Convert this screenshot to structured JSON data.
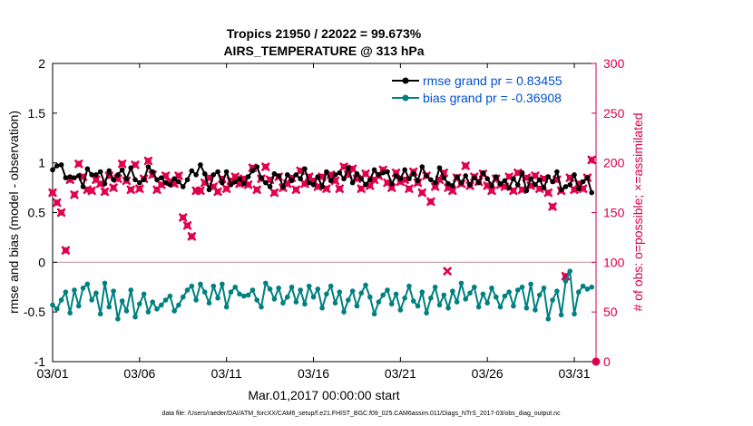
{
  "chart_data": {
    "type": "line",
    "title": "Tropics 21950 / 22022 = 99.673%",
    "subtitle": "AIRS_TEMPERATURE @ 313 hPa",
    "xlabel": "Mar.01,2017 00:00:00 start",
    "ylabel": "rmse and bias (model - observation)",
    "ylabel_right": "# of obs: o=possible; ×=assimilated",
    "footnote": "data file: /Users/raeder/DAI/ATM_forcXX/CAM6_setup/f.e21.FHIST_BGC.f09_025.CAM6assim.011/Diags_NTrS_2017-03/obs_diag_output.nc",
    "xlim": [
      0,
      31.25
    ],
    "ylim": [
      -1,
      2
    ],
    "ylim_right": [
      0,
      300
    ],
    "x_ticks": [
      0,
      5,
      10,
      15,
      20,
      25,
      30
    ],
    "x_tick_labels": [
      "03/01",
      "03/06",
      "03/11",
      "03/16",
      "03/21",
      "03/26",
      "03/31"
    ],
    "y_ticks": [
      -1,
      -0.5,
      0,
      0.5,
      1,
      1.5,
      2
    ],
    "y_tick_labels": [
      "-1",
      "-0.5",
      "0",
      "0.5",
      "1",
      "1.5",
      "2"
    ],
    "y_right_ticks": [
      0,
      50,
      100,
      150,
      200,
      250,
      300
    ],
    "y_right_tick_labels": [
      "0",
      "50",
      "100",
      "150",
      "200",
      "250",
      "300"
    ],
    "x": [
      0.0,
      0.25,
      0.5,
      0.75,
      1.0,
      1.25,
      1.5,
      1.75,
      2.0,
      2.25,
      2.5,
      2.75,
      3.0,
      3.25,
      3.5,
      3.75,
      4.0,
      4.25,
      4.5,
      4.75,
      5.0,
      5.25,
      5.5,
      5.75,
      6.0,
      6.25,
      6.5,
      6.75,
      7.0,
      7.25,
      7.5,
      7.75,
      8.0,
      8.25,
      8.5,
      8.75,
      9.0,
      9.25,
      9.5,
      9.75,
      10.0,
      10.25,
      10.5,
      10.75,
      11.0,
      11.25,
      11.5,
      11.75,
      12.0,
      12.25,
      12.5,
      12.75,
      13.0,
      13.25,
      13.5,
      13.75,
      14.0,
      14.25,
      14.5,
      14.75,
      15.0,
      15.25,
      15.5,
      15.75,
      16.0,
      16.25,
      16.5,
      16.75,
      17.0,
      17.25,
      17.5,
      17.75,
      18.0,
      18.25,
      18.5,
      18.75,
      19.0,
      19.25,
      19.5,
      19.75,
      20.0,
      20.25,
      20.5,
      20.75,
      21.0,
      21.25,
      21.5,
      21.75,
      22.0,
      22.25,
      22.5,
      22.75,
      23.0,
      23.25,
      23.5,
      23.75,
      24.0,
      24.25,
      24.5,
      24.75,
      25.0,
      25.25,
      25.5,
      25.75,
      26.0,
      26.25,
      26.5,
      26.75,
      27.0,
      27.25,
      27.5,
      27.75,
      28.0,
      28.25,
      28.5,
      28.75,
      29.0,
      29.25,
      29.5,
      29.75,
      30.0,
      30.25,
      30.5,
      30.75,
      31.0
    ],
    "series": [
      {
        "name": "rmse grand pr = 0.83455",
        "color": "#000000",
        "axis": "left",
        "marker": "circle",
        "values": [
          0.93,
          0.97,
          0.98,
          0.85,
          0.86,
          0.85,
          0.87,
          0.76,
          0.94,
          0.88,
          0.88,
          0.91,
          0.79,
          0.92,
          0.83,
          0.88,
          0.93,
          0.84,
          0.95,
          0.83,
          0.8,
          0.83,
          0.96,
          0.91,
          0.83,
          0.85,
          0.8,
          0.78,
          0.84,
          0.81,
          0.76,
          0.83,
          0.92,
          0.88,
          0.98,
          0.89,
          0.73,
          0.88,
          0.91,
          0.8,
          0.91,
          0.78,
          0.81,
          0.84,
          0.79,
          0.86,
          0.92,
          0.96,
          0.85,
          0.8,
          0.76,
          0.89,
          0.87,
          0.76,
          0.88,
          0.82,
          0.88,
          0.84,
          0.94,
          0.8,
          0.78,
          0.86,
          0.76,
          0.91,
          0.82,
          0.88,
          0.9,
          0.84,
          0.95,
          0.8,
          0.89,
          0.84,
          0.78,
          0.83,
          0.93,
          0.88,
          0.9,
          0.91,
          0.79,
          0.87,
          0.84,
          0.93,
          0.84,
          0.89,
          0.82,
          0.96,
          0.87,
          0.83,
          0.8,
          0.95,
          0.85,
          0.79,
          0.77,
          0.86,
          0.8,
          0.87,
          0.78,
          0.85,
          0.8,
          0.9,
          0.84,
          0.77,
          0.86,
          0.79,
          0.82,
          0.75,
          0.84,
          0.78,
          0.9,
          0.72,
          0.84,
          0.78,
          0.83,
          0.75,
          0.86,
          0.81,
          0.91,
          0.73,
          0.76,
          0.78,
          0.88,
          0.74,
          0.81,
          0.85,
          0.7
        ]
      },
      {
        "name": "bias grand pr = -0.36908",
        "color": "#008080",
        "axis": "left",
        "marker": "circle",
        "values": [
          -0.43,
          -0.47,
          -0.38,
          -0.3,
          -0.51,
          -0.28,
          -0.44,
          -0.26,
          -0.22,
          -0.38,
          -0.31,
          -0.52,
          -0.21,
          -0.45,
          -0.29,
          -0.57,
          -0.39,
          -0.49,
          -0.28,
          -0.55,
          -0.42,
          -0.32,
          -0.5,
          -0.4,
          -0.47,
          -0.43,
          -0.38,
          -0.34,
          -0.49,
          -0.43,
          -0.35,
          -0.28,
          -0.24,
          -0.38,
          -0.22,
          -0.3,
          -0.41,
          -0.24,
          -0.36,
          -0.22,
          -0.45,
          -0.3,
          -0.25,
          -0.32,
          -0.34,
          -0.33,
          -0.28,
          -0.38,
          -0.45,
          -0.21,
          -0.27,
          -0.37,
          -0.26,
          -0.41,
          -0.35,
          -0.25,
          -0.4,
          -0.28,
          -0.42,
          -0.24,
          -0.35,
          -0.27,
          -0.46,
          -0.32,
          -0.24,
          -0.41,
          -0.3,
          -0.5,
          -0.38,
          -0.29,
          -0.44,
          -0.31,
          -0.23,
          -0.35,
          -0.52,
          -0.4,
          -0.33,
          -0.28,
          -0.42,
          -0.32,
          -0.48,
          -0.36,
          -0.24,
          -0.39,
          -0.44,
          -0.3,
          -0.51,
          -0.36,
          -0.25,
          -0.43,
          -0.33,
          -0.46,
          -0.29,
          -0.4,
          -0.21,
          -0.37,
          -0.31,
          -0.25,
          -0.45,
          -0.32,
          -0.41,
          -0.26,
          -0.35,
          -0.45,
          -0.34,
          -0.3,
          -0.44,
          -0.28,
          -0.25,
          -0.46,
          -0.22,
          -0.48,
          -0.33,
          -0.26,
          -0.57,
          -0.38,
          -0.29,
          -0.53,
          -0.19,
          -0.09,
          -0.52,
          -0.3,
          -0.24,
          -0.27,
          -0.25
        ]
      },
      {
        "name": "# of obs assimilated",
        "color": "#e0004d",
        "axis": "right",
        "marker": "x",
        "values": [
          170,
          160,
          150,
          112,
          183,
          168,
          199,
          186,
          173,
          172,
          183,
          179,
          171,
          187,
          175,
          184,
          199,
          182,
          173,
          198,
          174,
          184,
          202,
          188,
          173,
          178,
          187,
          181,
          179,
          187,
          145,
          137,
          126,
          172,
          172,
          180,
          185,
          176,
          171,
          184,
          174,
          182,
          186,
          179,
          184,
          178,
          195,
          173,
          184,
          196,
          183,
          170,
          186,
          175,
          179,
          185,
          173,
          192,
          179,
          186,
          182,
          176,
          186,
          174,
          188,
          182,
          174,
          196,
          188,
          194,
          184,
          174,
          189,
          177,
          183,
          187,
          193,
          180,
          175,
          190,
          181,
          183,
          174,
          191,
          180,
          170,
          187,
          161,
          176,
          183,
          190,
          175,
          172,
          185,
          179,
          197,
          177,
          186,
          181,
          189,
          177,
          172,
          184,
          178,
          176,
          186,
          172,
          190,
          173,
          185,
          177,
          187,
          174,
          184,
          170,
          156,
          183,
          172,
          86,
          185,
          173,
          179,
          174,
          185,
          203
        ]
      },
      {
        "name": "# of obs possible",
        "color": "#e0004d",
        "axis": "right",
        "marker": "o",
        "values": [
          170,
          160,
          150,
          112,
          183,
          168,
          199,
          186,
          173,
          172,
          183,
          179,
          171,
          187,
          175,
          184,
          199,
          182,
          173,
          198,
          174,
          184,
          202,
          188,
          173,
          178,
          187,
          181,
          179,
          187,
          145,
          137,
          126,
          172,
          172,
          180,
          185,
          176,
          171,
          184,
          174,
          182,
          186,
          179,
          184,
          178,
          195,
          173,
          184,
          196,
          183,
          170,
          186,
          175,
          179,
          185,
          173,
          192,
          179,
          186,
          182,
          176,
          186,
          174,
          188,
          182,
          174,
          196,
          188,
          194,
          184,
          174,
          189,
          177,
          183,
          187,
          193,
          180,
          175,
          190,
          181,
          183,
          174,
          191,
          180,
          170,
          187,
          161,
          176,
          183,
          190,
          175,
          172,
          185,
          179,
          197,
          177,
          186,
          181,
          189,
          177,
          172,
          184,
          178,
          176,
          186,
          172,
          190,
          173,
          185,
          177,
          187,
          174,
          184,
          170,
          156,
          183,
          172,
          86,
          185,
          173,
          179,
          174,
          185,
          203
        ]
      }
    ],
    "extra_marks": [
      {
        "name": "late obs marker",
        "x": 22.7,
        "y_right": 91,
        "axis": "right",
        "marker": "x"
      },
      {
        "name": "end-of-period zero obs",
        "x": 31.25,
        "y_right": 0,
        "axis": "right",
        "marker": "o"
      }
    ],
    "zero_line": true,
    "legend_position": "top-right",
    "grid": false,
    "colors": {
      "left_axis": "#000000",
      "right_axis": "#d4004a",
      "legend_text": "#0050d0",
      "zero_line": "#c89a9a"
    }
  }
}
